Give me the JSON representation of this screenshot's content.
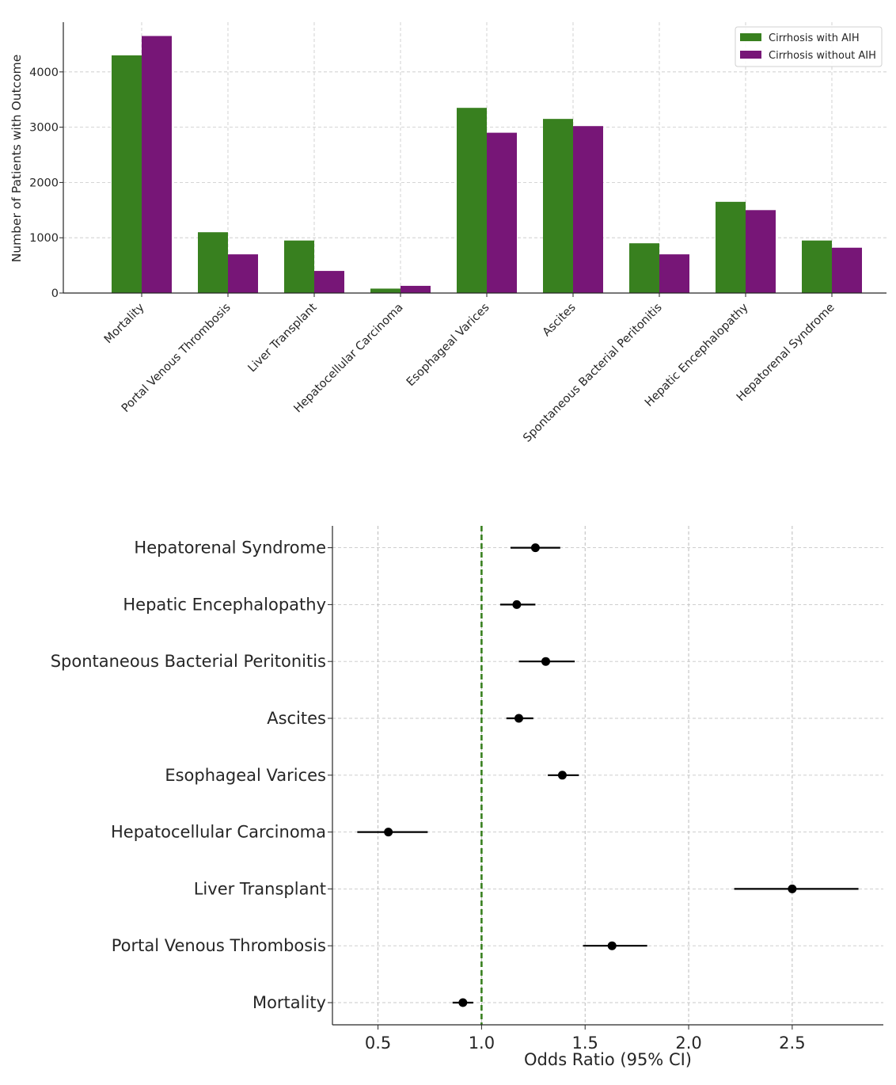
{
  "chart_data": [
    {
      "type": "bar",
      "title": "",
      "xlabel": "",
      "ylabel": "Number of Patients with Outcome",
      "ylim": [
        0,
        4900
      ],
      "yticks": [
        0,
        1000,
        2000,
        3000,
        4000
      ],
      "grid": true,
      "legend_position": "top-right",
      "categories": [
        "Mortality",
        "Portal Venous Thrombosis",
        "Liver Transplant",
        "Hepatocellular Carcinoma",
        "Esophageal Varices",
        "Ascites",
        "Spontaneous Bacterial Peritonitis",
        "Hepatic Encephalopathy",
        "Hepatorenal Syndrome"
      ],
      "series": [
        {
          "name": "Cirrhosis with AIH",
          "color": "#38801f",
          "values": [
            4300,
            1100,
            950,
            80,
            3350,
            3150,
            900,
            1650,
            950
          ]
        },
        {
          "name": "Cirrhosis without AIH",
          "color": "#771677",
          "values": [
            4650,
            700,
            400,
            130,
            2900,
            3020,
            700,
            1500,
            820
          ]
        }
      ]
    },
    {
      "type": "scatter",
      "title": "",
      "xlabel": "Odds Ratio (95% CI)",
      "ylabel": "",
      "xlim": [
        0.28,
        2.94
      ],
      "xticks": [
        "0.5",
        "1.0",
        "1.5",
        "2.0",
        "2.5"
      ],
      "grid": true,
      "reference_line": {
        "x": 1.0,
        "color": "#38801f",
        "style": "dashed"
      },
      "point_color": "#000000",
      "categories": [
        "Mortality",
        "Portal Venous Thrombosis",
        "Liver Transplant",
        "Hepatocellular Carcinoma",
        "Esophageal Varices",
        "Ascites",
        "Spontaneous Bacterial Peritonitis",
        "Hepatic Encephalopathy",
        "Hepatorenal Syndrome"
      ],
      "odds_ratio": [
        0.91,
        1.63,
        2.5,
        0.55,
        1.39,
        1.18,
        1.31,
        1.17,
        1.26
      ],
      "ci_lower": [
        0.86,
        1.49,
        2.22,
        0.4,
        1.32,
        1.12,
        1.18,
        1.09,
        1.14
      ],
      "ci_upper": [
        0.96,
        1.8,
        2.82,
        0.74,
        1.47,
        1.25,
        1.45,
        1.26,
        1.38
      ]
    }
  ]
}
